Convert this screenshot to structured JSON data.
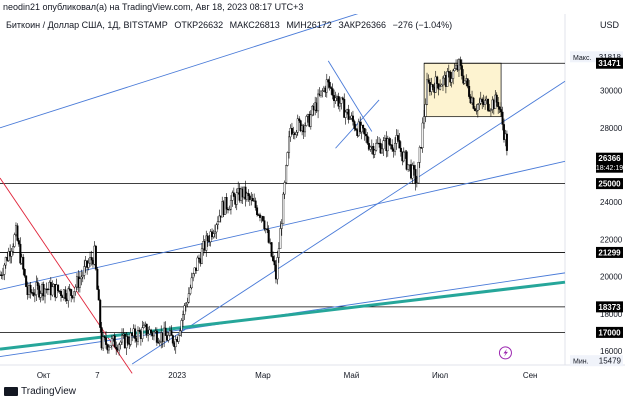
{
  "header": {
    "publish_text": "neodin21 опубликовал(а) на TradingView.com, Авг 18, 2023 08:17 UTC+3"
  },
  "legend": {
    "symbol": "Биткоин / Доллар США, 1Д, BITSTAMP",
    "open": "ОТКР26632",
    "high": "МАКС26813",
    "low": "МИН26172",
    "close": "ЗАКР26366",
    "change": "−276 (−1.04%)",
    "currency": "USD"
  },
  "footer": {
    "brand": "TradingView"
  },
  "colors": {
    "candle": "#000000",
    "trendline": "#4a7bd8",
    "red_line": "#e0263c",
    "teal_line": "#26a69a",
    "box_fill": "#fdf3d0",
    "level": "#000000",
    "price_label_bg": "#000000",
    "price_label_fg": "#ffffff"
  },
  "chart_data": {
    "type": "candlestick",
    "x_ticks": [
      "Окт",
      "7",
      "2023",
      "Мар",
      "Май",
      "Июл",
      "Сен"
    ],
    "y_ticks": [
      16000,
      18000,
      20000,
      22000,
      24000,
      26000,
      28000,
      30000
    ],
    "ylim": [
      15000,
      33000
    ],
    "price_labels": [
      {
        "label": "Макс.",
        "value": 31818,
        "style": "plain"
      },
      {
        "value": 31471,
        "style": "dark"
      },
      {
        "value": 26366,
        "style": "dark",
        "time": "18:42:19"
      },
      {
        "value": 25000,
        "style": "dark"
      },
      {
        "value": 21299,
        "style": "dark"
      },
      {
        "value": 18373,
        "style": "dark"
      },
      {
        "value": 17000,
        "style": "dark"
      },
      {
        "label": "Мин.",
        "value": 15479,
        "style": "plain"
      }
    ],
    "horizontal_levels": [
      31471,
      25000,
      21299,
      18373,
      17000
    ],
    "range_box": {
      "top": 31471,
      "bottom": 28600,
      "from": "2023-06-20",
      "to": "2023-08-12"
    },
    "series_path": [
      {
        "d": "2022-09-01",
        "p": 20100
      },
      {
        "d": "2022-09-12",
        "p": 22300
      },
      {
        "d": "2022-09-20",
        "p": 19100
      },
      {
        "d": "2022-10-01",
        "p": 19400
      },
      {
        "d": "2022-10-20",
        "p": 19100
      },
      {
        "d": "2022-11-05",
        "p": 21200
      },
      {
        "d": "2022-11-10",
        "p": 16400
      },
      {
        "d": "2022-11-25",
        "p": 16500
      },
      {
        "d": "2022-12-10",
        "p": 17100
      },
      {
        "d": "2022-12-31",
        "p": 16600
      },
      {
        "d": "2023-01-15",
        "p": 20800
      },
      {
        "d": "2023-02-01",
        "p": 23700
      },
      {
        "d": "2023-02-15",
        "p": 24500
      },
      {
        "d": "2023-03-01",
        "p": 23300
      },
      {
        "d": "2023-03-10",
        "p": 20000
      },
      {
        "d": "2023-03-20",
        "p": 28000
      },
      {
        "d": "2023-04-01",
        "p": 28300
      },
      {
        "d": "2023-04-14",
        "p": 30400
      },
      {
        "d": "2023-05-01",
        "p": 28400
      },
      {
        "d": "2023-05-15",
        "p": 27000
      },
      {
        "d": "2023-06-01",
        "p": 27200
      },
      {
        "d": "2023-06-15",
        "p": 25100
      },
      {
        "d": "2023-06-22",
        "p": 30200
      },
      {
        "d": "2023-07-06",
        "p": 30600
      },
      {
        "d": "2023-07-14",
        "p": 31300
      },
      {
        "d": "2023-07-25",
        "p": 29200
      },
      {
        "d": "2023-08-10",
        "p": 29400
      },
      {
        "d": "2023-08-17",
        "p": 26600
      }
    ],
    "trendlines": [
      {
        "name": "upper-channel",
        "color": "trendline",
        "from": {
          "d": "2022-09-01",
          "p": 28000
        },
        "to": {
          "d": "2023-06-01",
          "p": 34800
        }
      },
      {
        "name": "rising-support",
        "color": "trendline",
        "from": {
          "d": "2022-12-01",
          "p": 15300
        },
        "to": {
          "d": "2023-09-25",
          "p": 30500
        }
      },
      {
        "name": "lower-channel",
        "color": "trendline",
        "from": {
          "d": "2022-09-01",
          "p": 19300
        },
        "to": {
          "d": "2023-09-25",
          "p": 26200
        }
      },
      {
        "name": "descending-resistance",
        "color": "red_line",
        "from": {
          "d": "2022-09-01",
          "p": 25300
        },
        "to": {
          "d": "2022-12-01",
          "p": 14800
        }
      },
      {
        "name": "flag-top",
        "color": "trendline",
        "from": {
          "d": "2023-04-15",
          "p": 31600
        },
        "to": {
          "d": "2023-05-15",
          "p": 27800
        }
      },
      {
        "name": "flag-bottom",
        "color": "trendline",
        "from": {
          "d": "2023-04-20",
          "p": 26900
        },
        "to": {
          "d": "2023-05-20",
          "p": 29500
        }
      },
      {
        "name": "long-support",
        "color": "trendline",
        "from": {
          "d": "2022-09-01",
          "p": 15700
        },
        "to": {
          "d": "2023-09-25",
          "p": 20200
        }
      },
      {
        "name": "teal-support",
        "color": "teal_line",
        "from": {
          "d": "2022-09-01",
          "p": 16100
        },
        "to": {
          "d": "2023-09-25",
          "p": 19700
        }
      }
    ]
  }
}
